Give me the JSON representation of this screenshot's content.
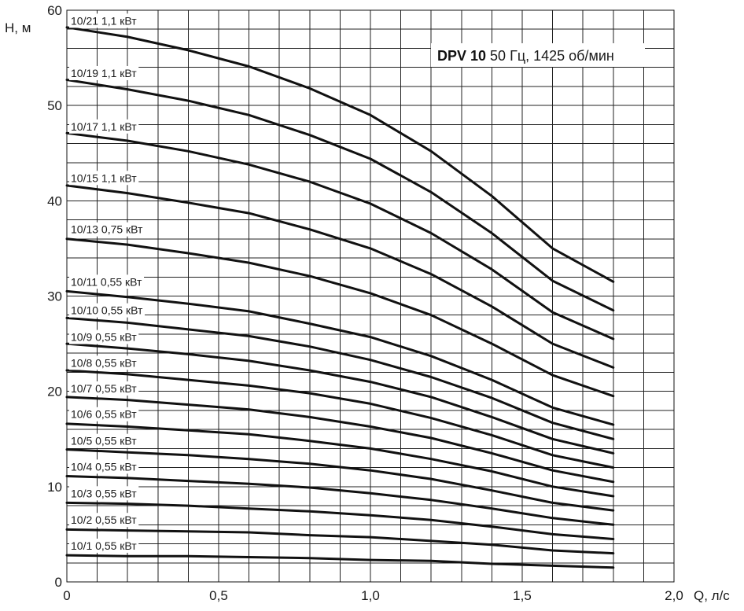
{
  "chart_data": {
    "type": "line",
    "title_bold": "DPV 10",
    "title_rest": "50 Гц, 1425 об/мин",
    "ylabel": "H, м",
    "xlabel": "Q, л/с",
    "xlim": [
      0,
      2.0
    ],
    "ylim": [
      0,
      60
    ],
    "grid": true,
    "x_ticks": [
      {
        "value": 0,
        "label": "0"
      },
      {
        "value": 0.5,
        "label": "0,5"
      },
      {
        "value": 1.0,
        "label": "1,0"
      },
      {
        "value": 1.5,
        "label": "1,5"
      },
      {
        "value": 2.0,
        "label": "2,0"
      }
    ],
    "y_ticks": [
      {
        "value": 0,
        "label": "0"
      },
      {
        "value": 10,
        "label": "10"
      },
      {
        "value": 20,
        "label": "20"
      },
      {
        "value": 30,
        "label": "30"
      },
      {
        "value": 40,
        "label": "40"
      },
      {
        "value": 50,
        "label": "50"
      },
      {
        "value": 60,
        "label": "60"
      }
    ],
    "x": [
      0,
      0.2,
      0.4,
      0.6,
      0.8,
      1.0,
      1.2,
      1.4,
      1.6,
      1.8
    ],
    "series": [
      {
        "name": "10/21 1,1 кВт",
        "label_y": 58.9,
        "values": [
          58.2,
          57.2,
          55.8,
          54.1,
          51.8,
          49.0,
          45.2,
          40.5,
          35.0,
          31.5
        ]
      },
      {
        "name": "10/19 1,1 кВт",
        "label_y": 53.4,
        "values": [
          52.7,
          51.7,
          50.5,
          49.0,
          46.9,
          44.4,
          40.9,
          36.6,
          31.6,
          28.5
        ]
      },
      {
        "name": "10/17 1,1 кВт",
        "label_y": 47.8,
        "values": [
          47.1,
          46.3,
          45.2,
          43.8,
          42.0,
          39.7,
          36.6,
          32.8,
          28.3,
          25.5
        ]
      },
      {
        "name": "10/15 1,1 кВт",
        "label_y": 42.4,
        "values": [
          41.6,
          40.8,
          39.8,
          38.7,
          37.0,
          35.0,
          32.3,
          28.9,
          25.0,
          22.5
        ]
      },
      {
        "name": "10/13 0,75 кВт",
        "label_y": 37.0,
        "values": [
          36.0,
          35.4,
          34.5,
          33.5,
          32.1,
          30.3,
          28.0,
          25.0,
          21.7,
          19.5
        ]
      },
      {
        "name": "10/11 0,55 кВт",
        "label_y": 31.5,
        "values": [
          30.5,
          29.9,
          29.2,
          28.4,
          27.1,
          25.7,
          23.7,
          21.2,
          18.3,
          16.5
        ]
      },
      {
        "name": "10/10 0,55 кВт",
        "label_y": 28.5,
        "values": [
          27.7,
          27.2,
          26.5,
          25.8,
          24.7,
          23.3,
          21.5,
          19.3,
          16.7,
          15.0
        ]
      },
      {
        "name": "10/9 0,55 кВт",
        "label_y": 25.7,
        "values": [
          25.0,
          24.5,
          23.9,
          23.2,
          22.2,
          21.0,
          19.4,
          17.3,
          15.0,
          13.5
        ]
      },
      {
        "name": "10/8 0,55 кВт",
        "label_y": 23.0,
        "values": [
          22.2,
          21.8,
          21.2,
          20.6,
          19.8,
          18.7,
          17.2,
          15.4,
          13.3,
          12.0
        ]
      },
      {
        "name": "10/7 0,55 кВт",
        "label_y": 20.3,
        "values": [
          19.4,
          19.1,
          18.6,
          18.1,
          17.3,
          16.3,
          15.1,
          13.5,
          11.7,
          10.5
        ]
      },
      {
        "name": "10/6 0,55 кВт",
        "label_y": 17.6,
        "values": [
          16.6,
          16.3,
          15.9,
          15.5,
          14.8,
          14.0,
          12.9,
          11.6,
          10.0,
          9.0
        ]
      },
      {
        "name": "10/5 0,55 кВт",
        "label_y": 14.8,
        "values": [
          13.9,
          13.6,
          13.3,
          12.9,
          12.4,
          11.7,
          10.8,
          9.6,
          8.3,
          7.5
        ]
      },
      {
        "name": "10/4 0,55 кВт",
        "label_y": 12.1,
        "values": [
          11.1,
          10.9,
          10.6,
          10.3,
          9.9,
          9.3,
          8.6,
          7.7,
          6.7,
          6.0
        ]
      },
      {
        "name": "10/3 0,55 кВт",
        "label_y": 9.3,
        "values": [
          8.3,
          8.2,
          8.0,
          7.7,
          7.4,
          7.0,
          6.5,
          5.8,
          5.0,
          4.5
        ]
      },
      {
        "name": "10/2 0,55 кВт",
        "label_y": 6.5,
        "values": [
          5.5,
          5.4,
          5.3,
          5.2,
          4.9,
          4.7,
          4.3,
          3.9,
          3.3,
          3.0
        ]
      },
      {
        "name": "10/1 0,55 кВт",
        "label_y": 3.8,
        "values": [
          2.8,
          2.7,
          2.7,
          2.6,
          2.5,
          2.3,
          2.2,
          1.9,
          1.7,
          1.5
        ]
      }
    ]
  }
}
